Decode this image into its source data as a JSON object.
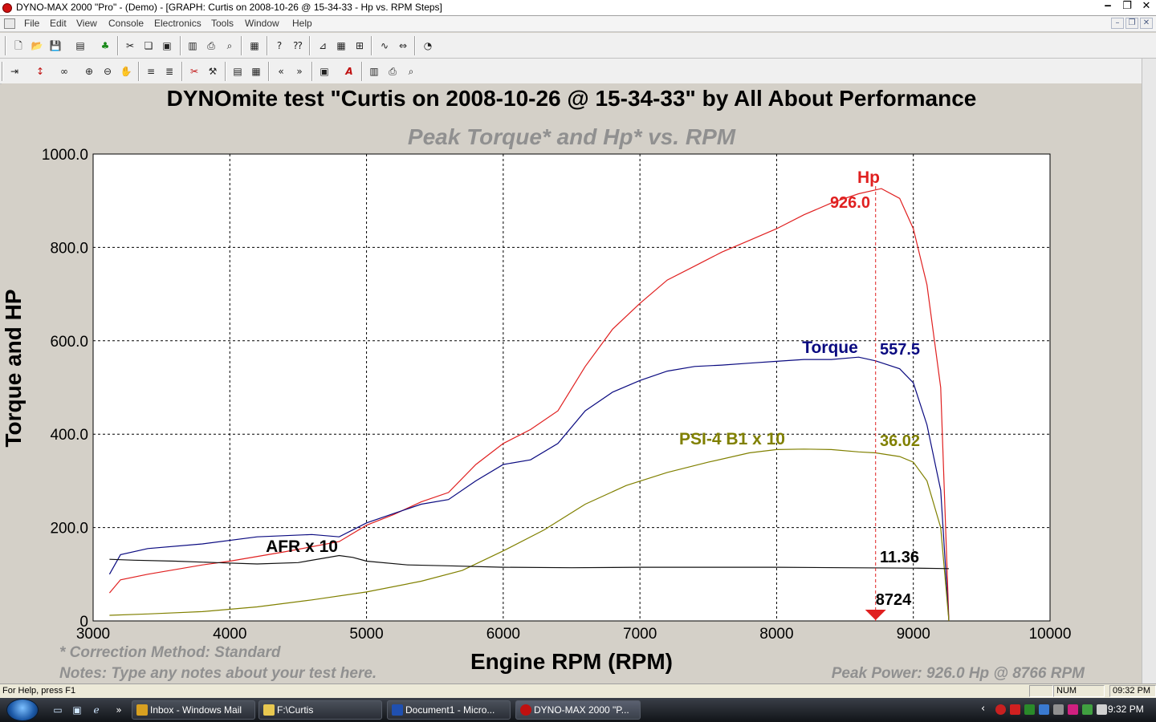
{
  "window": {
    "title": "DYNO-MAX 2000 \"Pro\" - (Demo) - [GRAPH: Curtis on 2008-10-26 @ 15-34-33 - Hp vs. RPM Steps]"
  },
  "menu": [
    "File",
    "Edit",
    "View",
    "Console",
    "Electronics",
    "Tools",
    "Window",
    "Help"
  ],
  "toolbar1_icons": [
    "new-icon",
    "open-icon",
    "save-icon",
    "print-setup-icon",
    "tree-icon",
    "cut-icon",
    "copy-icon",
    "paste-icon",
    "book-icon",
    "print-icon",
    "print-preview-icon",
    "import-icon",
    "help-icon",
    "context-help-icon",
    "graph-icon",
    "grid-icon",
    "table-icon",
    "waveform-icon",
    "scale-icon",
    "gauge-icon"
  ],
  "toolbar2_icons": [
    "pin-icon",
    "cursor-icon",
    "zoom-glasses-icon",
    "zoom-in-icon",
    "zoom-out-icon",
    "hand-icon",
    "stack-icon",
    "stack2-icon",
    "cut-icon",
    "tool-icon",
    "table-icon",
    "grid-icon",
    "back-icon",
    "forward-icon",
    "chart-icon",
    "font-icon",
    "book-icon",
    "print-icon",
    "print-preview-icon"
  ],
  "chart_data": {
    "type": "line",
    "title": "DYNOmite test \"Curtis on 2008-10-26 @ 15-34-33\" by All About Performance",
    "subtitle": "Peak Torque* and Hp* vs. RPM",
    "xlabel": "Engine RPM (RPM)",
    "ylabel": "Torque and HP",
    "xlim": [
      3000,
      10000
    ],
    "ylim": [
      0,
      1000
    ],
    "x_ticks": [
      "3000",
      "4000",
      "5000",
      "6000",
      "7000",
      "8000",
      "9000",
      "10000"
    ],
    "y_ticks": [
      "0",
      "200.0",
      "400.0",
      "600.0",
      "800.0",
      "1000.0"
    ],
    "x_tick_values": [
      3000,
      4000,
      5000,
      6000,
      7000,
      8000,
      9000,
      10000
    ],
    "y_tick_values": [
      0,
      200,
      400,
      600,
      800,
      1000
    ],
    "grid": true,
    "cursor": {
      "rpm": 8724,
      "label": "8724"
    },
    "series": [
      {
        "name": "Hp",
        "color": "#e02020",
        "points": [
          [
            3120,
            60
          ],
          [
            3200,
            88
          ],
          [
            3400,
            100
          ],
          [
            3800,
            120
          ],
          [
            4000,
            128
          ],
          [
            4400,
            148
          ],
          [
            4800,
            170
          ],
          [
            5000,
            205
          ],
          [
            5200,
            228
          ],
          [
            5400,
            255
          ],
          [
            5600,
            275
          ],
          [
            5800,
            335
          ],
          [
            6000,
            380
          ],
          [
            6200,
            410
          ],
          [
            6400,
            450
          ],
          [
            6600,
            545
          ],
          [
            6800,
            625
          ],
          [
            7000,
            680
          ],
          [
            7200,
            730
          ],
          [
            7400,
            760
          ],
          [
            7600,
            790
          ],
          [
            7800,
            815
          ],
          [
            8000,
            840
          ],
          [
            8200,
            870
          ],
          [
            8400,
            895
          ],
          [
            8600,
            915
          ],
          [
            8766,
            926
          ],
          [
            8900,
            905
          ],
          [
            9000,
            840
          ],
          [
            9100,
            720
          ],
          [
            9200,
            500
          ],
          [
            9260,
            0
          ]
        ],
        "peak_label": "926.0"
      },
      {
        "name": "Torque",
        "color": "#0a0a80",
        "points": [
          [
            3120,
            100
          ],
          [
            3200,
            142
          ],
          [
            3400,
            155
          ],
          [
            3800,
            165
          ],
          [
            4200,
            180
          ],
          [
            4600,
            185
          ],
          [
            4800,
            180
          ],
          [
            5000,
            210
          ],
          [
            5200,
            230
          ],
          [
            5400,
            250
          ],
          [
            5600,
            260
          ],
          [
            5800,
            300
          ],
          [
            6000,
            335
          ],
          [
            6200,
            345
          ],
          [
            6400,
            380
          ],
          [
            6600,
            450
          ],
          [
            6800,
            490
          ],
          [
            7000,
            515
          ],
          [
            7200,
            535
          ],
          [
            7400,
            545
          ],
          [
            7600,
            548
          ],
          [
            7800,
            552
          ],
          [
            8000,
            556
          ],
          [
            8200,
            560
          ],
          [
            8400,
            560
          ],
          [
            8600,
            565
          ],
          [
            8724,
            557
          ],
          [
            8900,
            540
          ],
          [
            9000,
            510
          ],
          [
            9100,
            420
          ],
          [
            9200,
            280
          ],
          [
            9260,
            0
          ]
        ],
        "peak_label": "557.5"
      },
      {
        "name": "PSI-4 B1 x 10",
        "color": "#808000",
        "points": [
          [
            3120,
            12
          ],
          [
            3400,
            15
          ],
          [
            3800,
            20
          ],
          [
            4200,
            30
          ],
          [
            4600,
            45
          ],
          [
            5000,
            62
          ],
          [
            5400,
            85
          ],
          [
            5700,
            108
          ],
          [
            6000,
            150
          ],
          [
            6300,
            195
          ],
          [
            6600,
            250
          ],
          [
            6900,
            290
          ],
          [
            7200,
            318
          ],
          [
            7500,
            340
          ],
          [
            7800,
            360
          ],
          [
            8000,
            367
          ],
          [
            8200,
            368
          ],
          [
            8400,
            367
          ],
          [
            8600,
            362
          ],
          [
            8724,
            360
          ],
          [
            8900,
            352
          ],
          [
            9000,
            340
          ],
          [
            9100,
            300
          ],
          [
            9200,
            200
          ],
          [
            9260,
            0
          ]
        ],
        "peak_label": "36.02"
      },
      {
        "name": "AFR x 10",
        "color": "#101010",
        "points": [
          [
            3120,
            132
          ],
          [
            3300,
            130
          ],
          [
            3600,
            128
          ],
          [
            3900,
            125
          ],
          [
            4200,
            122
          ],
          [
            4500,
            125
          ],
          [
            4800,
            140
          ],
          [
            4900,
            136
          ],
          [
            5000,
            128
          ],
          [
            5300,
            120
          ],
          [
            5600,
            118
          ],
          [
            6000,
            115
          ],
          [
            6500,
            114
          ],
          [
            7000,
            115
          ],
          [
            7500,
            115
          ],
          [
            8000,
            115
          ],
          [
            8500,
            114
          ],
          [
            9000,
            113
          ],
          [
            9260,
            112
          ]
        ],
        "peak_label": "11.36"
      }
    ],
    "notes": {
      "correction": "* Correction Method: Standard",
      "notes": "Notes: Type any notes about your test here.",
      "peak_power": "Peak Power: 926.0 Hp @ 8766 RPM"
    }
  },
  "status": {
    "help": "For Help, press F1",
    "num": "NUM",
    "time": "09:32 PM"
  },
  "taskbar": {
    "buttons": [
      {
        "label": "Inbox - Windows Mail",
        "color": "#d8a020"
      },
      {
        "label": "F:\\Curtis",
        "color": "#e8c850"
      },
      {
        "label": "Document1 - Micro...",
        "color": "#2050b0"
      },
      {
        "label": "DYNO-MAX 2000 \"P...",
        "color": "#c01010"
      }
    ],
    "clock": "9:32 PM",
    "show_more": "»",
    "tray_arrow": "‹"
  }
}
